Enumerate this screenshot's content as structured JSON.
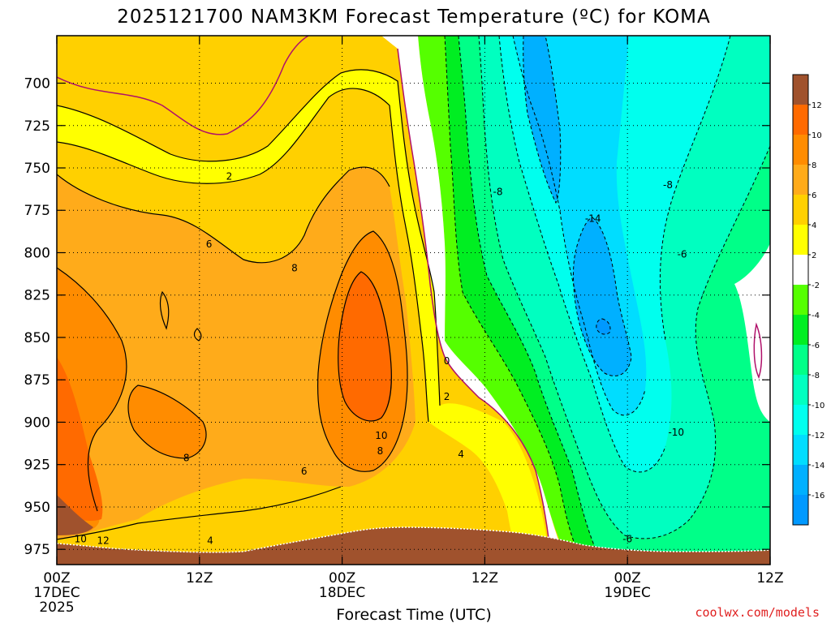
{
  "chart_data": {
    "type": "heatmap",
    "title": "2025121700 NAM3KM Forecast Temperature (ºC) for KOMA",
    "xlabel": "Forecast Time (UTC)",
    "ylabel": "",
    "x_ticks": [
      {
        "hour": 0,
        "label": "00Z",
        "sub": "17DEC",
        "sub2": "2025"
      },
      {
        "hour": 12,
        "label": "12Z",
        "sub": "",
        "sub2": ""
      },
      {
        "hour": 24,
        "label": "00Z",
        "sub": "18DEC",
        "sub2": ""
      },
      {
        "hour": 36,
        "label": "12Z",
        "sub": "",
        "sub2": ""
      },
      {
        "hour": 48,
        "label": "00Z",
        "sub": "19DEC",
        "sub2": ""
      },
      {
        "hour": 60,
        "label": "12Z",
        "sub": "",
        "sub2": ""
      }
    ],
    "xlim_hours": [
      0,
      60
    ],
    "y_ticks": [
      700,
      725,
      750,
      775,
      800,
      825,
      850,
      875,
      900,
      925,
      950,
      975
    ],
    "y_unit": "hPa",
    "ylim_hpa": [
      672,
      984
    ],
    "colorbar": {
      "labels": [
        "12",
        "10",
        "8",
        "6",
        "4",
        "2",
        "-2",
        "-4",
        "-6",
        "-8",
        "-10",
        "-12",
        "-14",
        "-16"
      ],
      "bins": [
        {
          "range": "12 to 14",
          "color": "#a0522d"
        },
        {
          "range": "10 to 12",
          "color": "#ff6a00"
        },
        {
          "range": "8 to 10",
          "color": "#ff8c00"
        },
        {
          "range": "6 to 8",
          "color": "#ffab1a"
        },
        {
          "range": "4 to 6",
          "color": "#ffd000"
        },
        {
          "range": "2 to 4",
          "color": "#ffff00"
        },
        {
          "range": "-2 to 2",
          "color": "#ffffff"
        },
        {
          "range": "-4 to -2",
          "color": "#55ff00"
        },
        {
          "range": "-6 to -4",
          "color": "#00ee22"
        },
        {
          "range": "-8 to -6",
          "color": "#00ff88"
        },
        {
          "range": "-10 to -8",
          "color": "#00ffc0"
        },
        {
          "range": "-12 to -10",
          "color": "#00ffee"
        },
        {
          "range": "-14 to -12",
          "color": "#00ddff"
        },
        {
          "range": "-16 to -14",
          "color": "#00b0ff"
        },
        {
          "range": "-18 to -16",
          "color": "#0099ff"
        }
      ]
    },
    "contour_labels": [
      {
        "text": "2",
        "hour": 14.5,
        "hpa": 755
      },
      {
        "text": "6",
        "hour": 12.8,
        "hpa": 795
      },
      {
        "text": "8",
        "hour": 20.0,
        "hpa": 809
      },
      {
        "text": "0",
        "hour": 32.8,
        "hpa": 864
      },
      {
        "text": "2",
        "hour": 32.8,
        "hpa": 885
      },
      {
        "text": "4",
        "hour": 34.0,
        "hpa": 919
      },
      {
        "text": "6",
        "hour": 20.8,
        "hpa": 929
      },
      {
        "text": "8",
        "hour": 10.9,
        "hpa": 921
      },
      {
        "text": "10",
        "hour": 27.3,
        "hpa": 908
      },
      {
        "text": "8",
        "hour": 27.2,
        "hpa": 917
      },
      {
        "text": "10",
        "hour": 2.0,
        "hpa": 969
      },
      {
        "text": "12",
        "hour": 3.9,
        "hpa": 970
      },
      {
        "text": "4",
        "hour": 12.9,
        "hpa": 970
      },
      {
        "text": "-8",
        "hour": 37.1,
        "hpa": 764
      },
      {
        "text": "-14",
        "hour": 45.1,
        "hpa": 780
      },
      {
        "text": "-8",
        "hour": 51.4,
        "hpa": 760
      },
      {
        "text": "-6",
        "hour": 52.6,
        "hpa": 801
      },
      {
        "text": "-10",
        "hour": 52.1,
        "hpa": 906
      },
      {
        "text": "-6",
        "hour": 48.0,
        "hpa": 969
      }
    ],
    "watermark": "coolwx.com/models"
  }
}
